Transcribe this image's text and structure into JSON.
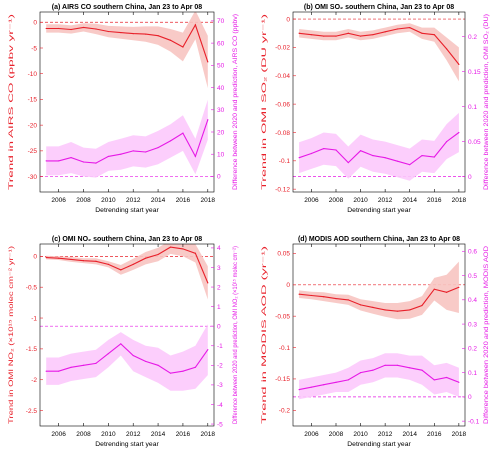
{
  "chart_data": [
    {
      "id": "a",
      "type": "line",
      "title": "(a) AIRS CO southern China, Jan 23 to Apr 08",
      "xlabel": "Detrending start year",
      "ylabel_left": "Trend in AIRS CO (ppbv yr⁻¹)",
      "ylabel_right": "Difference between 2020 and prediction, AIRS CO (ppbv)",
      "x": [
        2005,
        2006,
        2007,
        2008,
        2009,
        2010,
        2011,
        2012,
        2013,
        2014,
        2015,
        2016,
        2017,
        2018
      ],
      "xlim": [
        2004.5,
        2018.5
      ],
      "xticks": [
        "2006",
        "2008",
        "2010",
        "2012",
        "2014",
        "2016",
        "2018"
      ],
      "left_axis": {
        "ylim": [
          -33,
          2
        ],
        "ticks": [
          "0",
          "-5",
          "-10",
          "-15",
          "-20",
          "-25",
          "-30"
        ],
        "color": "#e8202a",
        "refline": 0
      },
      "right_axis": {
        "ylim": [
          -7,
          74
        ],
        "ticks": [
          "0",
          "10",
          "20",
          "30",
          "40",
          "50",
          "60",
          "70"
        ],
        "color": "#e619e6",
        "refline": 0
      },
      "series": [
        {
          "axis": "left",
          "color": "#e8202a",
          "band_color": "#f7c4c1",
          "values": [
            -1.2,
            -1.2,
            -1.4,
            -1.0,
            -1.3,
            -1.8,
            -2.0,
            -2.2,
            -2.3,
            -2.6,
            -3.5,
            -4.8,
            -0.5,
            -7.7
          ],
          "lower": [
            -2.0,
            -2.0,
            -2.2,
            -1.8,
            -2.3,
            -2.9,
            -3.2,
            -3.5,
            -3.8,
            -4.4,
            -5.7,
            -7.6,
            -3.3,
            -12.8
          ],
          "upper": [
            -0.4,
            -0.4,
            -0.6,
            -0.2,
            -0.3,
            -0.7,
            -0.8,
            -0.9,
            -0.8,
            -0.8,
            -1.3,
            -2.0,
            2.3,
            -2.6
          ]
        },
        {
          "axis": "right",
          "color": "#e619e6",
          "band_color": "#fcc9fc",
          "values": [
            7.0,
            7.0,
            8.5,
            6.5,
            6.0,
            9.0,
            10.0,
            11.5,
            11.0,
            13.0,
            16.0,
            19.5,
            9.0,
            25.5
          ],
          "lower": [
            0.5,
            0.5,
            1.5,
            0.0,
            -0.5,
            2.5,
            3.0,
            4.5,
            4.0,
            5.5,
            8.5,
            11.5,
            1.0,
            16.5
          ],
          "upper": [
            13.5,
            13.5,
            15.5,
            13.0,
            12.5,
            15.5,
            17.0,
            18.5,
            18.0,
            20.5,
            23.5,
            27.5,
            17.0,
            34.5
          ]
        }
      ]
    },
    {
      "id": "b",
      "type": "line",
      "title": "(b) OMI SO₂ southern China, Jan 23 to Apr 08",
      "xlabel": "Detrending start year",
      "ylabel_left": "Trend in OMI SO₂ (DU yr⁻¹)",
      "ylabel_right": "Difference between 2020 and prediction, OMI SO₂ (DU)",
      "x": [
        2005,
        2006,
        2007,
        2008,
        2009,
        2010,
        2011,
        2012,
        2013,
        2014,
        2015,
        2016,
        2017,
        2018
      ],
      "xlim": [
        2004.5,
        2018.5
      ],
      "xticks": [
        "2006",
        "2008",
        "2010",
        "2012",
        "2014",
        "2016",
        "2018"
      ],
      "left_axis": {
        "ylim": [
          -0.122,
          0.005
        ],
        "ticks": [
          "0",
          "-0.02",
          "-0.04",
          "-0.06",
          "-0.08",
          "-0.1",
          "-0.12"
        ],
        "color": "#e8202a",
        "refline": 0
      },
      "right_axis": {
        "ylim": [
          -0.022,
          0.235
        ],
        "ticks": [
          "0",
          "0.05",
          "0.1",
          "0.15",
          "0.2"
        ],
        "color": "#e619e6",
        "refline": 0
      },
      "series": [
        {
          "axis": "left",
          "color": "#e8202a",
          "band_color": "#f7c4c1",
          "values": [
            -0.01,
            -0.011,
            -0.012,
            -0.012,
            -0.01,
            -0.012,
            -0.011,
            -0.009,
            -0.007,
            -0.006,
            -0.01,
            -0.011,
            -0.021,
            -0.032
          ],
          "lower": [
            -0.013,
            -0.014,
            -0.015,
            -0.015,
            -0.013,
            -0.015,
            -0.014,
            -0.012,
            -0.01,
            -0.009,
            -0.014,
            -0.016,
            -0.029,
            -0.044
          ],
          "upper": [
            -0.007,
            -0.008,
            -0.009,
            -0.009,
            -0.007,
            -0.009,
            -0.008,
            -0.006,
            -0.004,
            -0.003,
            -0.006,
            -0.006,
            -0.013,
            -0.02
          ]
        },
        {
          "axis": "right",
          "color": "#e619e6",
          "band_color": "#fcc9fc",
          "values": [
            0.027,
            0.033,
            0.04,
            0.038,
            0.02,
            0.037,
            0.03,
            0.027,
            0.022,
            0.017,
            0.03,
            0.028,
            0.05,
            0.063
          ],
          "lower": [
            0.005,
            0.011,
            0.017,
            0.015,
            -0.003,
            0.014,
            0.007,
            0.004,
            -0.001,
            -0.006,
            0.007,
            0.005,
            0.025,
            0.035
          ],
          "upper": [
            0.049,
            0.055,
            0.063,
            0.061,
            0.043,
            0.06,
            0.053,
            0.05,
            0.045,
            0.04,
            0.053,
            0.051,
            0.075,
            0.091
          ]
        }
      ]
    },
    {
      "id": "c",
      "type": "line",
      "title": "(c) OMI NO₂ southern China, Jan 23 to Apr 08",
      "xlabel": "Detrending start year",
      "ylabel_left": "Trend in OMI NO₂ (×10¹⁵ molec cm⁻² yr⁻¹)",
      "ylabel_right": "Difference between 2020 and prediction, OMI NO₂ (×10¹⁵ molec cm⁻²)",
      "x": [
        2005,
        2006,
        2007,
        2008,
        2009,
        2010,
        2011,
        2012,
        2013,
        2014,
        2015,
        2016,
        2017,
        2018
      ],
      "xlim": [
        2004.5,
        2018.5
      ],
      "xticks": [
        "2006",
        "2008",
        "2010",
        "2012",
        "2014",
        "2016",
        "2018"
      ],
      "left_axis": {
        "ylim": [
          -2.75,
          0.2
        ],
        "ticks": [
          "0",
          "-0.5",
          "-1",
          "-1.5",
          "-2",
          "-2.5"
        ],
        "color": "#e8202a",
        "refline": 0
      },
      "right_axis": {
        "ylim": [
          -5.1,
          4.2
        ],
        "ticks": [
          "-5",
          "-4",
          "-3",
          "-2",
          "-1",
          "0",
          "1",
          "2",
          "3",
          "4"
        ],
        "color": "#e619e6",
        "refline": 0
      },
      "series": [
        {
          "axis": "left",
          "color": "#e8202a",
          "band_color": "#f7c4c1",
          "values": [
            -0.02,
            -0.03,
            -0.05,
            -0.07,
            -0.08,
            -0.13,
            -0.22,
            -0.13,
            -0.03,
            0.03,
            0.15,
            0.12,
            0.05,
            -0.43
          ],
          "lower": [
            -0.05,
            -0.06,
            -0.09,
            -0.11,
            -0.13,
            -0.18,
            -0.3,
            -0.22,
            -0.13,
            -0.08,
            0.04,
            0.0,
            -0.1,
            -0.7
          ],
          "upper": [
            0.01,
            0.0,
            -0.01,
            -0.03,
            -0.03,
            -0.08,
            -0.14,
            -0.04,
            0.07,
            0.14,
            0.26,
            0.24,
            0.2,
            -0.16
          ]
        },
        {
          "axis": "right",
          "color": "#e619e6",
          "band_color": "#fcc9fc",
          "values": [
            -2.3,
            -2.3,
            -2.1,
            -2.0,
            -1.9,
            -1.4,
            -0.9,
            -1.5,
            -1.8,
            -2.0,
            -2.4,
            -2.3,
            -2.1,
            -1.2
          ],
          "lower": [
            -3.0,
            -3.0,
            -2.8,
            -2.7,
            -2.6,
            -2.1,
            -1.5,
            -2.3,
            -2.6,
            -2.9,
            -3.3,
            -3.3,
            -3.2,
            -2.5
          ],
          "upper": [
            -1.6,
            -1.6,
            -1.4,
            -1.3,
            -1.2,
            -0.7,
            -0.3,
            -0.7,
            -1.0,
            -1.1,
            -1.5,
            -1.3,
            -1.0,
            0.1
          ]
        }
      ]
    },
    {
      "id": "d",
      "type": "line",
      "title": "(d) MODIS AOD southern China, Jan 23 to Apr 08",
      "xlabel": "Detrending start year",
      "ylabel_left": "Trend in MODIS AOD (yr⁻¹)",
      "ylabel_right": "Difference between 2020 and prediction, MODIS AOD",
      "x": [
        2005,
        2006,
        2007,
        2008,
        2009,
        2010,
        2011,
        2012,
        2013,
        2014,
        2015,
        2016,
        2017,
        2018
      ],
      "xlim": [
        2004.5,
        2018.5
      ],
      "xticks": [
        "2006",
        "2008",
        "2010",
        "2012",
        "2014",
        "2016",
        "2018"
      ],
      "left_axis": {
        "ylim": [
          -0.225,
          0.065
        ],
        "ticks": [
          "0.05",
          "0",
          "-0.05",
          "-0.1",
          "-0.15",
          "-0.2"
        ],
        "color": "#e8202a",
        "refline": 0
      },
      "right_axis": {
        "ylim": [
          -0.12,
          0.63
        ],
        "ticks": [
          "-0.1",
          "0",
          "0.1",
          "0.2",
          "0.3",
          "0.4",
          "0.5",
          "0.6"
        ],
        "color": "#e619e6",
        "refline": 0
      },
      "series": [
        {
          "axis": "left",
          "color": "#e8202a",
          "band_color": "#f7c4c1",
          "values": [
            -0.015,
            -0.017,
            -0.019,
            -0.022,
            -0.024,
            -0.032,
            -0.036,
            -0.04,
            -0.042,
            -0.04,
            -0.033,
            -0.007,
            -0.012,
            -0.004
          ],
          "lower": [
            -0.021,
            -0.023,
            -0.026,
            -0.029,
            -0.032,
            -0.041,
            -0.046,
            -0.051,
            -0.055,
            -0.054,
            -0.048,
            -0.025,
            -0.04,
            -0.045
          ],
          "upper": [
            -0.009,
            -0.011,
            -0.012,
            -0.015,
            -0.016,
            -0.023,
            -0.026,
            -0.029,
            -0.029,
            -0.026,
            -0.018,
            0.011,
            0.016,
            0.037
          ]
        },
        {
          "axis": "right",
          "color": "#e619e6",
          "band_color": "#fcc9fc",
          "values": [
            0.03,
            0.04,
            0.05,
            0.06,
            0.07,
            0.1,
            0.11,
            0.13,
            0.13,
            0.12,
            0.11,
            0.07,
            0.08,
            0.06
          ],
          "lower": [
            -0.01,
            0.0,
            0.01,
            0.02,
            0.02,
            0.05,
            0.06,
            0.08,
            0.08,
            0.07,
            0.05,
            0.01,
            0.02,
            0.0
          ],
          "upper": [
            0.07,
            0.08,
            0.09,
            0.1,
            0.12,
            0.15,
            0.16,
            0.18,
            0.18,
            0.17,
            0.17,
            0.13,
            0.14,
            0.12
          ]
        }
      ]
    }
  ]
}
